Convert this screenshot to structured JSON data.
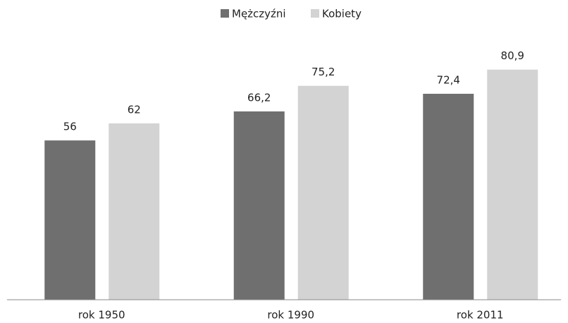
{
  "chart_data": {
    "type": "bar",
    "categories": [
      "rok 1950",
      "rok 1990",
      "rok 2011"
    ],
    "series": [
      {
        "name": "Mężczyźni",
        "color": "#6f6f6f",
        "values": [
          56,
          66.2,
          72.4
        ],
        "value_labels": [
          "56",
          "66,2",
          "72,4"
        ]
      },
      {
        "name": "Kobiety",
        "color": "#d3d3d3",
        "values": [
          62,
          75.2,
          80.9
        ],
        "value_labels": [
          "62",
          "75,2",
          "80,9"
        ]
      }
    ],
    "ylim": [
      0,
      90
    ]
  }
}
